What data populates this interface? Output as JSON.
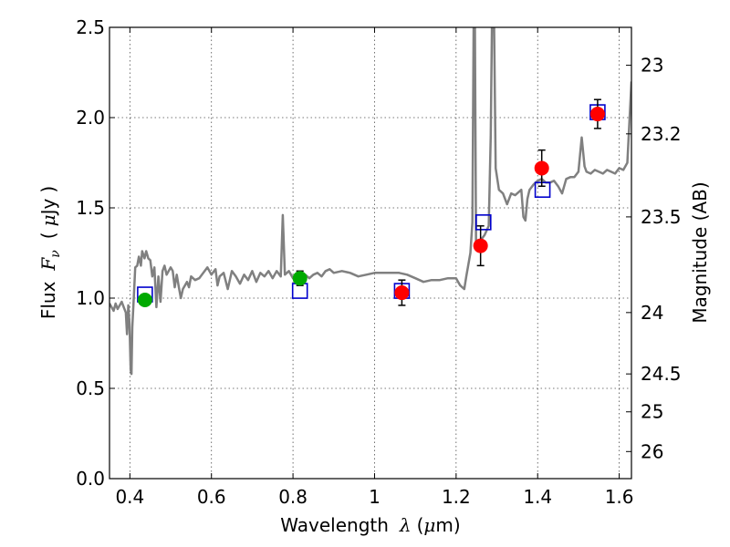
{
  "chart_data": {
    "type": "scatter",
    "xlabel": {
      "text": "Wavelength",
      "symbol": "λ",
      "unit_open": "(",
      "unit_mu": "μ",
      "unit_rest": "m)"
    },
    "ylabel": {
      "text": "Flux",
      "symbol": "F",
      "subscript": "ν",
      "unit_open": "(",
      "unit_mu": "μ",
      "unit_rest": "Jy",
      "unit_close": ")"
    },
    "y2label": "Magnitude (AB)",
    "xlim": [
      0.35,
      1.63
    ],
    "ylim": [
      0.0,
      2.5
    ],
    "grid": true,
    "xticks": [
      0.4,
      0.6,
      0.8,
      1.0,
      1.2,
      1.4,
      1.6
    ],
    "xtick_labels": [
      "0.4",
      "0.6",
      "0.8",
      "1",
      "1.2",
      "1.4",
      "1.6"
    ],
    "yticks": [
      0.0,
      0.5,
      1.0,
      1.5,
      2.0,
      2.5
    ],
    "ytick_labels": [
      "0.0",
      "0.5",
      "1.0",
      "1.5",
      "2.0",
      "2.5"
    ],
    "y2ticks": [
      {
        "label": "23",
        "flux": 2.29
      },
      {
        "label": "23.2",
        "flux": 1.91
      },
      {
        "label": "23.5",
        "flux": 1.45
      },
      {
        "label": "24",
        "flux": 0.92
      },
      {
        "label": "24.5",
        "flux": 0.58
      },
      {
        "label": "25",
        "flux": 0.37
      },
      {
        "label": "26",
        "flux": 0.15
      }
    ],
    "series": [
      {
        "kind": "line",
        "color": "#808080",
        "points": [
          [
            0.35,
            0.97
          ],
          [
            0.36,
            0.93
          ],
          [
            0.365,
            0.97
          ],
          [
            0.37,
            0.94
          ],
          [
            0.38,
            0.98
          ],
          [
            0.385,
            0.95
          ],
          [
            0.39,
            0.92
          ],
          [
            0.393,
            0.8
          ],
          [
            0.396,
            0.96
          ],
          [
            0.399,
            0.86
          ],
          [
            0.402,
            0.6
          ],
          [
            0.404,
            0.58
          ],
          [
            0.406,
            0.84
          ],
          [
            0.41,
            1.02
          ],
          [
            0.413,
            1.17
          ],
          [
            0.418,
            1.18
          ],
          [
            0.422,
            1.23
          ],
          [
            0.427,
            1.18
          ],
          [
            0.43,
            1.26
          ],
          [
            0.436,
            1.22
          ],
          [
            0.44,
            1.26
          ],
          [
            0.445,
            1.22
          ],
          [
            0.45,
            1.21
          ],
          [
            0.455,
            1.12
          ],
          [
            0.46,
            1.17
          ],
          [
            0.465,
            0.95
          ],
          [
            0.47,
            1.12
          ],
          [
            0.475,
            0.98
          ],
          [
            0.48,
            1.15
          ],
          [
            0.485,
            1.18
          ],
          [
            0.49,
            1.13
          ],
          [
            0.5,
            1.17
          ],
          [
            0.505,
            1.15
          ],
          [
            0.51,
            1.06
          ],
          [
            0.515,
            1.13
          ],
          [
            0.52,
            1.06
          ],
          [
            0.525,
            1.0
          ],
          [
            0.53,
            1.05
          ],
          [
            0.54,
            1.09
          ],
          [
            0.545,
            1.06
          ],
          [
            0.55,
            1.12
          ],
          [
            0.56,
            1.1
          ],
          [
            0.57,
            1.11
          ],
          [
            0.58,
            1.14
          ],
          [
            0.59,
            1.17
          ],
          [
            0.6,
            1.13
          ],
          [
            0.61,
            1.16
          ],
          [
            0.615,
            1.07
          ],
          [
            0.62,
            1.12
          ],
          [
            0.63,
            1.14
          ],
          [
            0.64,
            1.05
          ],
          [
            0.65,
            1.15
          ],
          [
            0.66,
            1.12
          ],
          [
            0.67,
            1.08
          ],
          [
            0.68,
            1.13
          ],
          [
            0.69,
            1.1
          ],
          [
            0.7,
            1.15
          ],
          [
            0.71,
            1.09
          ],
          [
            0.72,
            1.14
          ],
          [
            0.73,
            1.12
          ],
          [
            0.74,
            1.15
          ],
          [
            0.75,
            1.11
          ],
          [
            0.76,
            1.15
          ],
          [
            0.77,
            1.12
          ],
          [
            0.775,
            1.46
          ],
          [
            0.78,
            1.13
          ],
          [
            0.79,
            1.15
          ],
          [
            0.8,
            1.11
          ],
          [
            0.81,
            1.14
          ],
          [
            0.82,
            1.1
          ],
          [
            0.83,
            1.13
          ],
          [
            0.84,
            1.11
          ],
          [
            0.85,
            1.13
          ],
          [
            0.86,
            1.14
          ],
          [
            0.87,
            1.12
          ],
          [
            0.88,
            1.15
          ],
          [
            0.89,
            1.16
          ],
          [
            0.9,
            1.14
          ],
          [
            0.92,
            1.15
          ],
          [
            0.94,
            1.14
          ],
          [
            0.96,
            1.12
          ],
          [
            0.98,
            1.13
          ],
          [
            1.0,
            1.14
          ],
          [
            1.02,
            1.14
          ],
          [
            1.04,
            1.14
          ],
          [
            1.06,
            1.14
          ],
          [
            1.08,
            1.13
          ],
          [
            1.1,
            1.11
          ],
          [
            1.12,
            1.09
          ],
          [
            1.14,
            1.1
          ],
          [
            1.16,
            1.1
          ],
          [
            1.18,
            1.11
          ],
          [
            1.2,
            1.11
          ],
          [
            1.21,
            1.07
          ],
          [
            1.22,
            1.05
          ],
          [
            1.225,
            1.12
          ],
          [
            1.235,
            1.25
          ],
          [
            1.24,
            1.42
          ],
          [
            1.243,
            2.55
          ],
          [
            1.246,
            2.55
          ],
          [
            1.249,
            1.28
          ],
          [
            1.255,
            1.3
          ],
          [
            1.26,
            1.32
          ],
          [
            1.27,
            1.35
          ],
          [
            1.28,
            1.4
          ],
          [
            1.285,
            1.9
          ],
          [
            1.288,
            2.55
          ],
          [
            1.293,
            2.55
          ],
          [
            1.297,
            1.72
          ],
          [
            1.305,
            1.6
          ],
          [
            1.315,
            1.58
          ],
          [
            1.325,
            1.52
          ],
          [
            1.335,
            1.58
          ],
          [
            1.345,
            1.57
          ],
          [
            1.36,
            1.6
          ],
          [
            1.365,
            1.45
          ],
          [
            1.37,
            1.43
          ],
          [
            1.375,
            1.55
          ],
          [
            1.38,
            1.6
          ],
          [
            1.39,
            1.63
          ],
          [
            1.4,
            1.65
          ],
          [
            1.41,
            1.66
          ],
          [
            1.42,
            1.64
          ],
          [
            1.43,
            1.64
          ],
          [
            1.44,
            1.65
          ],
          [
            1.45,
            1.62
          ],
          [
            1.46,
            1.58
          ],
          [
            1.47,
            1.66
          ],
          [
            1.48,
            1.67
          ],
          [
            1.49,
            1.67
          ],
          [
            1.5,
            1.7
          ],
          [
            1.508,
            1.89
          ],
          [
            1.515,
            1.73
          ],
          [
            1.52,
            1.7
          ],
          [
            1.53,
            1.69
          ],
          [
            1.54,
            1.71
          ],
          [
            1.55,
            1.7
          ],
          [
            1.56,
            1.69
          ],
          [
            1.57,
            1.71
          ],
          [
            1.58,
            1.7
          ],
          [
            1.59,
            1.69
          ],
          [
            1.6,
            1.72
          ],
          [
            1.61,
            1.71
          ],
          [
            1.62,
            1.75
          ],
          [
            1.63,
            2.2
          ]
        ]
      },
      {
        "kind": "squares",
        "color": "#0000cc",
        "points": [
          [
            0.437,
            1.02
          ],
          [
            0.817,
            1.04
          ],
          [
            1.067,
            1.04
          ],
          [
            1.267,
            1.42
          ],
          [
            1.412,
            1.6
          ],
          [
            1.547,
            2.03
          ]
        ]
      },
      {
        "kind": "points",
        "color": "#00aa00",
        "points": [
          {
            "x": 0.437,
            "y": 0.99,
            "err": 0.03
          },
          {
            "x": 0.817,
            "y": 1.11,
            "err": 0.04
          }
        ]
      },
      {
        "kind": "points",
        "color": "#ff0000",
        "points": [
          {
            "x": 1.067,
            "y": 1.03,
            "err": 0.07
          },
          {
            "x": 1.26,
            "y": 1.29,
            "err": 0.11
          },
          {
            "x": 1.41,
            "y": 1.72,
            "err": 0.1
          },
          {
            "x": 1.547,
            "y": 2.02,
            "err": 0.08
          }
        ]
      }
    ]
  }
}
